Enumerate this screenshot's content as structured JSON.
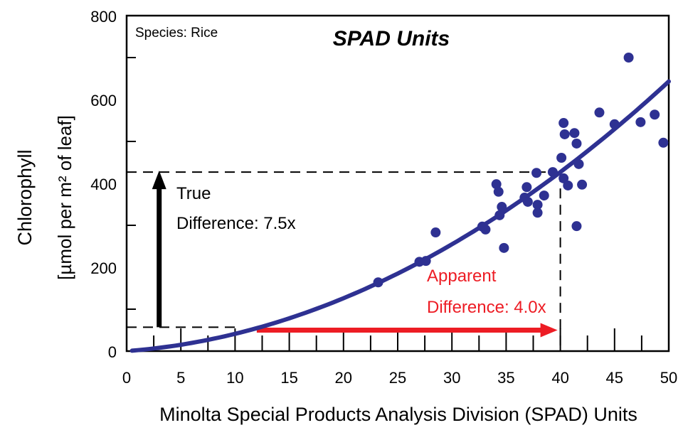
{
  "chart_data": {
    "type": "scatter",
    "title": "SPAD Units",
    "subtitle": "Species: Rice",
    "xlabel": "Minolta Special Products Analysis Division (SPAD) Units",
    "ylabel_line1": "Chlorophyll",
    "ylabel_line2": "[µmol per m² of leaf]",
    "xlim": [
      0,
      50
    ],
    "ylim": [
      0,
      800
    ],
    "xticks": [
      "0",
      "5",
      "10",
      "15",
      "20",
      "25",
      "30",
      "35",
      "40",
      "45",
      "50"
    ],
    "yticks": [
      "0",
      "200",
      "400",
      "600",
      "800"
    ],
    "grid": false,
    "colors": {
      "points": "#2e3192",
      "fit": "#2e3192",
      "apparent": "#ed1c24",
      "true": "#000000"
    },
    "points": [
      {
        "x": 23.2,
        "y": 164
      },
      {
        "x": 27.0,
        "y": 213
      },
      {
        "x": 27.6,
        "y": 215
      },
      {
        "x": 28.5,
        "y": 283
      },
      {
        "x": 33.1,
        "y": 290
      },
      {
        "x": 32.8,
        "y": 297
      },
      {
        "x": 34.8,
        "y": 246
      },
      {
        "x": 34.1,
        "y": 398
      },
      {
        "x": 34.3,
        "y": 380
      },
      {
        "x": 34.6,
        "y": 344
      },
      {
        "x": 34.4,
        "y": 324
      },
      {
        "x": 36.7,
        "y": 366
      },
      {
        "x": 37.0,
        "y": 356
      },
      {
        "x": 36.9,
        "y": 391
      },
      {
        "x": 37.9,
        "y": 349
      },
      {
        "x": 37.9,
        "y": 330
      },
      {
        "x": 38.5,
        "y": 371
      },
      {
        "x": 37.8,
        "y": 425
      },
      {
        "x": 39.3,
        "y": 427
      },
      {
        "x": 40.3,
        "y": 412
      },
      {
        "x": 40.7,
        "y": 395
      },
      {
        "x": 40.1,
        "y": 461
      },
      {
        "x": 41.7,
        "y": 446
      },
      {
        "x": 42.0,
        "y": 397
      },
      {
        "x": 41.5,
        "y": 298
      },
      {
        "x": 40.3,
        "y": 544
      },
      {
        "x": 40.4,
        "y": 517
      },
      {
        "x": 41.3,
        "y": 520
      },
      {
        "x": 41.5,
        "y": 495
      },
      {
        "x": 43.6,
        "y": 569
      },
      {
        "x": 45.0,
        "y": 541
      },
      {
        "x": 46.3,
        "y": 700
      },
      {
        "x": 47.4,
        "y": 546
      },
      {
        "x": 48.7,
        "y": 564
      },
      {
        "x": 49.5,
        "y": 497
      }
    ],
    "fit_curve": {
      "form": "y = a*x^2 + b*x",
      "a": 0.2185,
      "b": 1.935,
      "x_range": [
        0.5,
        50
      ]
    },
    "reference_lines": {
      "low_y": 57,
      "high_y": 427,
      "high_x": 40,
      "low_x_end": 10.5
    },
    "true_arrow": {
      "x": 3,
      "y_from": 57,
      "y_to": 427,
      "label_line1": "True",
      "label_line2": "Difference: 7.5x"
    },
    "apparent_arrow": {
      "y": 50,
      "x_from": 12,
      "x_to": 40,
      "label_line1": "Apparent",
      "label_line2": "Difference: 4.0x"
    }
  }
}
